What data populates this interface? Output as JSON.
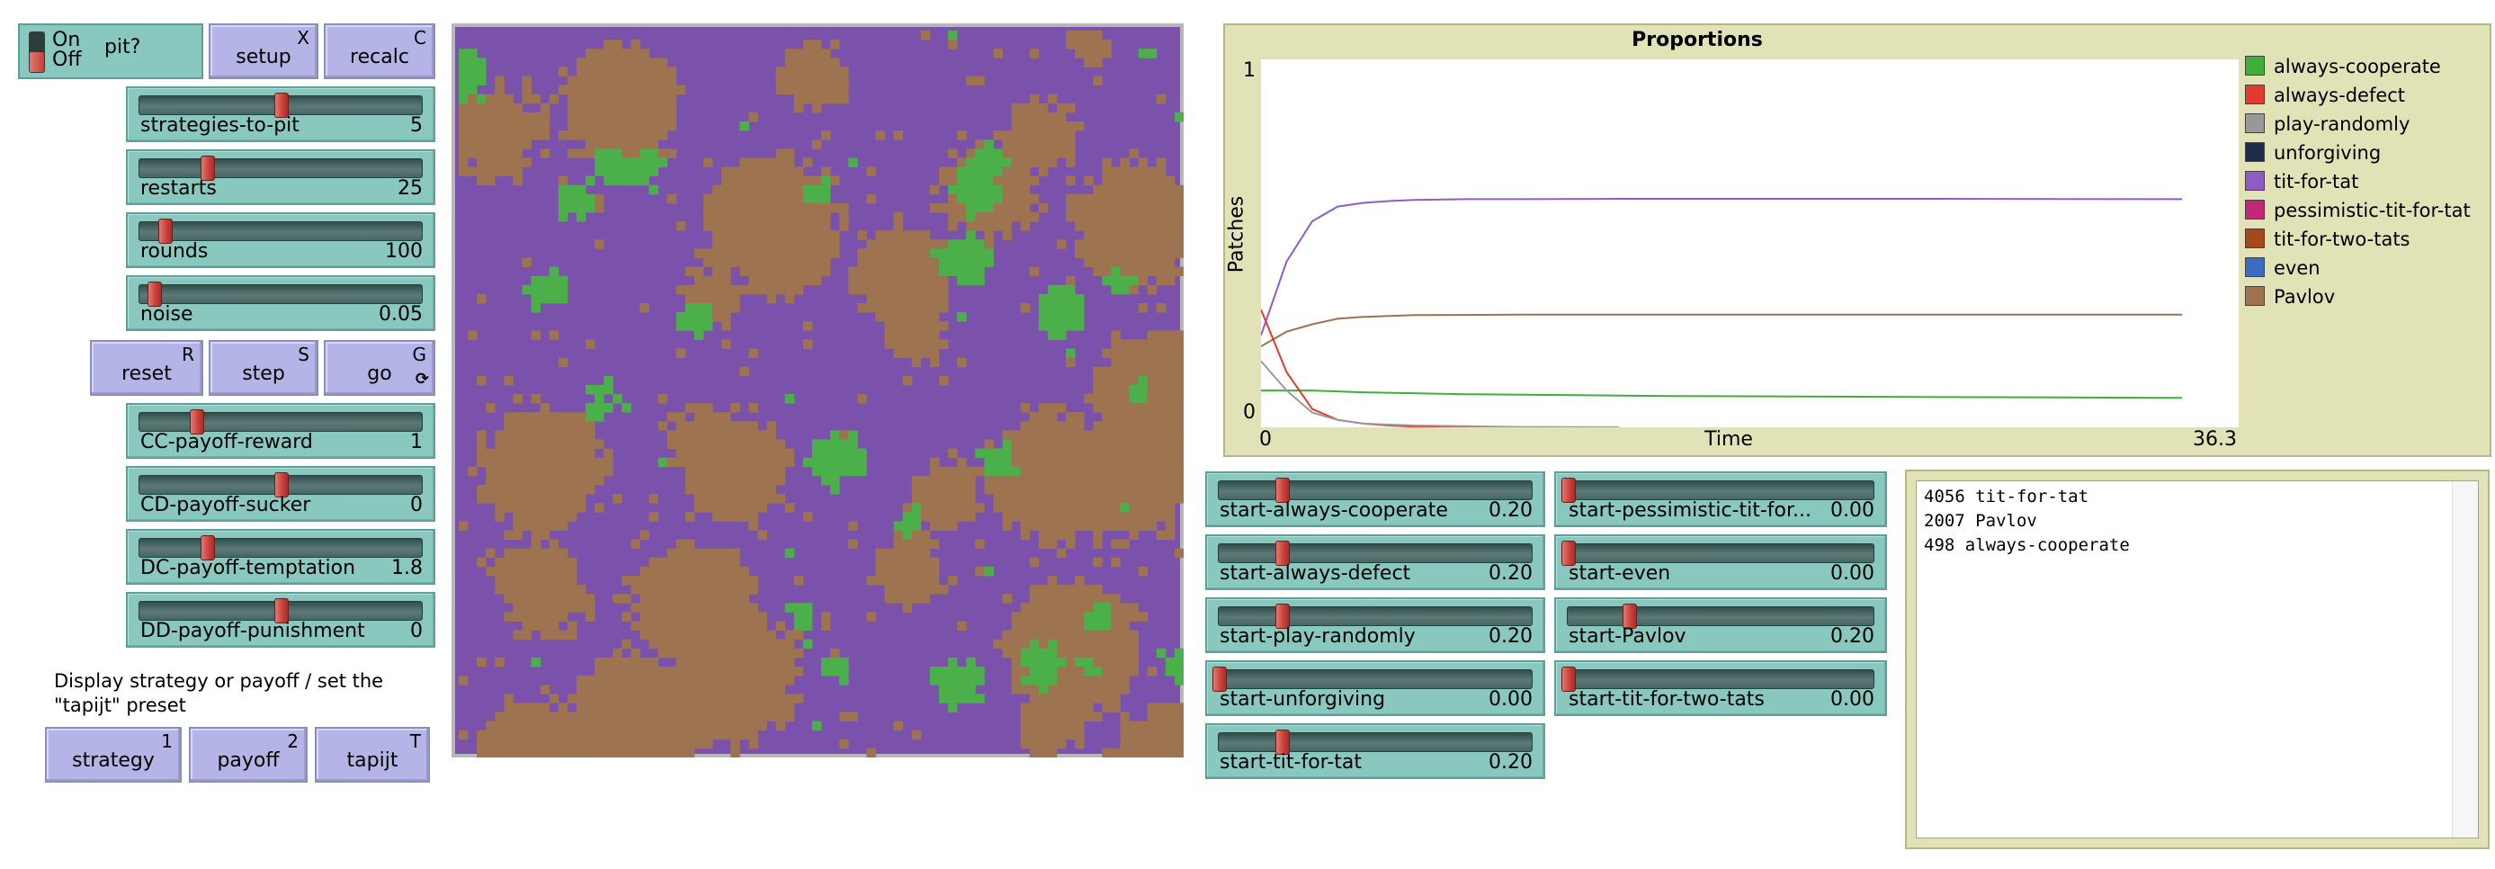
{
  "switch": {
    "on": "On",
    "off": "Off",
    "label": "pit?"
  },
  "buttons": {
    "setup": {
      "label": "setup",
      "key": "X"
    },
    "recalc": {
      "label": "recalc",
      "key": "C"
    },
    "reset": {
      "label": "reset",
      "key": "R"
    },
    "step": {
      "label": "step",
      "key": "S"
    },
    "go": {
      "label": "go",
      "key": "G",
      "forever_icon": "forever-arrows-icon"
    },
    "strategy": {
      "label": "strategy",
      "key": "1"
    },
    "payoff": {
      "label": "payoff",
      "key": "2"
    },
    "tapijt": {
      "label": "tapijt",
      "key": "T"
    }
  },
  "left_sliders": [
    {
      "name": "strategies-to-pit",
      "value": "5",
      "fraction": 0.5
    },
    {
      "name": "restarts",
      "value": "25",
      "fraction": 0.24
    },
    {
      "name": "rounds",
      "value": "100",
      "fraction": 0.09
    },
    {
      "name": "noise",
      "value": "0.05",
      "fraction": 0.05
    },
    {
      "name": "CC-payoff-reward",
      "value": "1",
      "fraction": 0.2
    },
    {
      "name": "CD-payoff-sucker",
      "value": "0",
      "fraction": 0.5
    },
    {
      "name": "DC-payoff-temptation",
      "value": "1.8",
      "fraction": 0.24
    },
    {
      "name": "DD-payoff-punishment",
      "value": "0",
      "fraction": 0.5
    }
  ],
  "note": "Display strategy or payoff / set the \"tapijt\" preset",
  "plot": {
    "title": "Proportions",
    "ylabel": "Patches",
    "xlabel": "Time",
    "ymin_label": "0",
    "ymax_label": "1",
    "xmin_label": "0",
    "xmax_label": "36.3",
    "legend": [
      {
        "name": "always-cooperate",
        "color": "#3fae3a"
      },
      {
        "name": "always-defect",
        "color": "#e23a2e"
      },
      {
        "name": "play-randomly",
        "color": "#989898"
      },
      {
        "name": "unforgiving",
        "color": "#1c2c4a"
      },
      {
        "name": "tit-for-tat",
        "color": "#8e5cc4"
      },
      {
        "name": "pessimistic-tit-for-tat",
        "color": "#c2277a"
      },
      {
        "name": "tit-for-two-tats",
        "color": "#a5481a"
      },
      {
        "name": "even",
        "color": "#3b6cc0"
      },
      {
        "name": "Pavlov",
        "color": "#9d7350"
      }
    ]
  },
  "chart_data": {
    "type": "line",
    "title": "Proportions",
    "xlabel": "Time",
    "ylabel": "Patches",
    "xlim": [
      0,
      36.3
    ],
    "ylim": [
      0,
      1
    ],
    "series": [
      {
        "name": "tit-for-tat",
        "color": "#8e5cc4",
        "x": [
          0,
          1,
          2,
          3,
          4,
          5,
          6,
          8,
          10,
          14,
          20,
          26,
          36
        ],
        "y": [
          0.25,
          0.45,
          0.56,
          0.6,
          0.61,
          0.615,
          0.618,
          0.62,
          0.62,
          0.621,
          0.621,
          0.621,
          0.62
        ]
      },
      {
        "name": "Pavlov",
        "color": "#9d7350",
        "x": [
          0,
          1,
          2,
          3,
          4,
          6,
          10,
          20,
          36
        ],
        "y": [
          0.22,
          0.26,
          0.28,
          0.295,
          0.3,
          0.305,
          0.306,
          0.306,
          0.306
        ]
      },
      {
        "name": "always-cooperate",
        "color": "#3fae3a",
        "x": [
          0,
          2,
          4,
          8,
          16,
          36
        ],
        "y": [
          0.1,
          0.1,
          0.095,
          0.09,
          0.085,
          0.08
        ]
      },
      {
        "name": "always-defect",
        "color": "#e23a2e",
        "x": [
          0,
          1,
          2,
          3,
          4,
          5,
          6,
          8,
          10
        ],
        "y": [
          0.32,
          0.15,
          0.05,
          0.02,
          0.01,
          0.005,
          0.002,
          0.001,
          0
        ]
      },
      {
        "name": "play-randomly",
        "color": "#989898",
        "x": [
          0,
          1,
          2,
          3,
          4,
          6,
          8,
          10,
          14
        ],
        "y": [
          0.18,
          0.1,
          0.04,
          0.02,
          0.01,
          0.005,
          0.003,
          0.001,
          0
        ]
      }
    ]
  },
  "start_sliders_left": [
    {
      "name": "start-always-cooperate",
      "value": "0.20",
      "fraction": 0.2
    },
    {
      "name": "start-always-defect",
      "value": "0.20",
      "fraction": 0.2
    },
    {
      "name": "start-play-randomly",
      "value": "0.20",
      "fraction": 0.2
    },
    {
      "name": "start-unforgiving",
      "value": "0.00",
      "fraction": 0.0
    },
    {
      "name": "start-tit-for-tat",
      "value": "0.20",
      "fraction": 0.2
    }
  ],
  "start_sliders_right": [
    {
      "name": "start-pessimistic-tit-for...",
      "value": "0.00",
      "fraction": 0.0
    },
    {
      "name": "start-even",
      "value": "0.00",
      "fraction": 0.0
    },
    {
      "name": "start-Pavlov",
      "value": "0.20",
      "fraction": 0.2
    },
    {
      "name": "start-tit-for-two-tats",
      "value": "0.00",
      "fraction": 0.0
    }
  ],
  "output_lines": [
    "4056 tit-for-tat",
    "2007 Pavlov",
    "498 always-cooperate"
  ],
  "world": {
    "colors": {
      "tit-for-tat": "#7b52ab",
      "Pavlov": "#9d7350",
      "always-cooperate": "#4cb04a"
    }
  }
}
